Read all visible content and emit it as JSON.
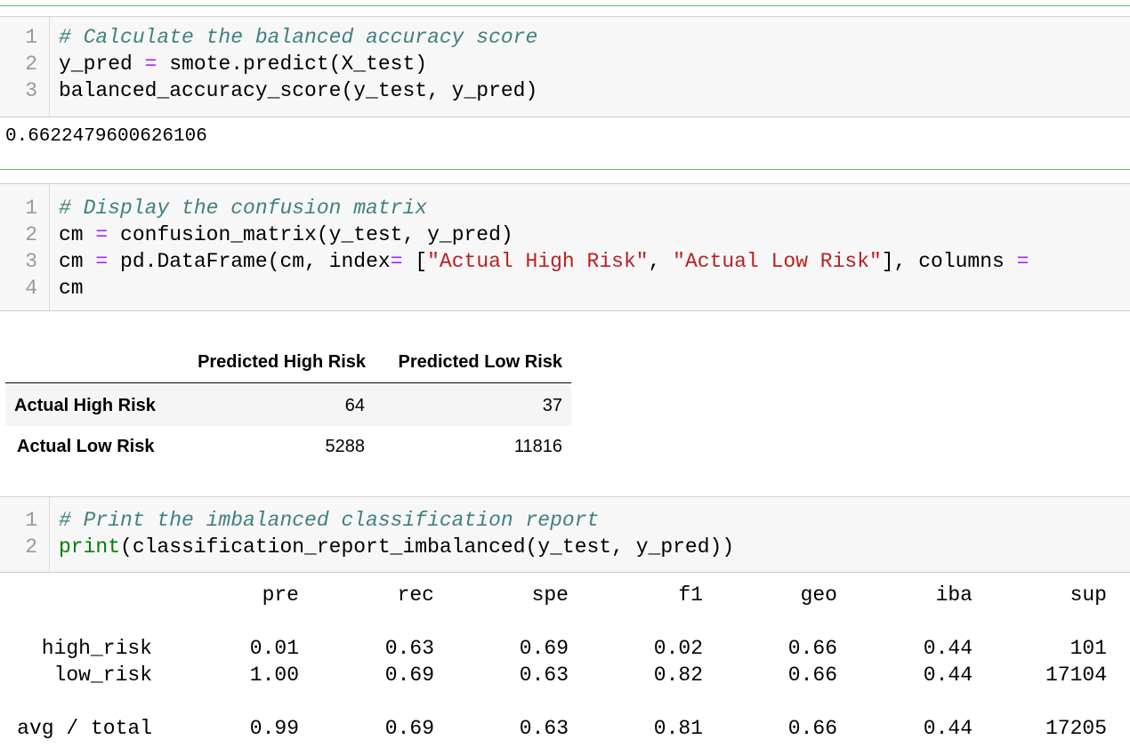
{
  "cell1": {
    "lines": [
      {
        "num": "1",
        "parts": [
          {
            "t": "# Calculate the balanced accuracy score",
            "c": "cm"
          }
        ]
      },
      {
        "num": "2",
        "parts": [
          {
            "t": "y_pred ",
            "c": ""
          },
          {
            "t": "=",
            "c": "op"
          },
          {
            "t": " smote.predict(X_test)",
            "c": ""
          }
        ]
      },
      {
        "num": "3",
        "parts": [
          {
            "t": "balanced_accuracy_score(y_test, y_pred)",
            "c": ""
          }
        ]
      }
    ],
    "output": "0.6622479600626106"
  },
  "cell2": {
    "lines": [
      {
        "num": "1",
        "parts": [
          {
            "t": "# Display the confusion matrix",
            "c": "cm"
          }
        ]
      },
      {
        "num": "2",
        "parts": [
          {
            "t": "cm ",
            "c": ""
          },
          {
            "t": "=",
            "c": "op"
          },
          {
            "t": " confusion_matrix(y_test, y_pred)",
            "c": ""
          }
        ]
      },
      {
        "num": "3",
        "parts": [
          {
            "t": "cm ",
            "c": ""
          },
          {
            "t": "=",
            "c": "op"
          },
          {
            "t": " pd.DataFrame(cm, index",
            "c": ""
          },
          {
            "t": "=",
            "c": "op"
          },
          {
            "t": " [",
            "c": ""
          },
          {
            "t": "\"Actual High Risk\"",
            "c": "str"
          },
          {
            "t": ", ",
            "c": ""
          },
          {
            "t": "\"Actual Low Risk\"",
            "c": "str"
          },
          {
            "t": "], columns ",
            "c": ""
          },
          {
            "t": "=",
            "c": "op"
          }
        ]
      },
      {
        "num": "4",
        "parts": [
          {
            "t": "cm",
            "c": ""
          }
        ]
      }
    ],
    "dataframe": {
      "columns": [
        "Predicted High Risk",
        "Predicted Low Risk"
      ],
      "rows": [
        {
          "label": "Actual High Risk",
          "values": [
            "64",
            "37"
          ]
        },
        {
          "label": "Actual Low Risk",
          "values": [
            "5288",
            "11816"
          ]
        }
      ]
    }
  },
  "cell3": {
    "lines": [
      {
        "num": "1",
        "parts": [
          {
            "t": "# Print the imbalanced classification report",
            "c": "cm"
          }
        ]
      },
      {
        "num": "2",
        "parts": [
          {
            "t": "print",
            "c": "bi"
          },
          {
            "t": "(classification_report_imbalanced(y_test, y_pred))",
            "c": ""
          }
        ]
      }
    ],
    "report": {
      "headers": [
        "pre",
        "rec",
        "spe",
        "f1",
        "geo",
        "iba",
        "sup"
      ],
      "rows": [
        {
          "label": "high_risk",
          "values": [
            "0.01",
            "0.63",
            "0.69",
            "0.02",
            "0.66",
            "0.44",
            "101"
          ]
        },
        {
          "label": "low_risk",
          "values": [
            "1.00",
            "0.69",
            "0.63",
            "0.82",
            "0.66",
            "0.44",
            "17104"
          ]
        },
        {
          "label": "avg / total",
          "values": [
            "0.99",
            "0.69",
            "0.63",
            "0.81",
            "0.66",
            "0.44",
            "17205"
          ]
        }
      ]
    }
  }
}
